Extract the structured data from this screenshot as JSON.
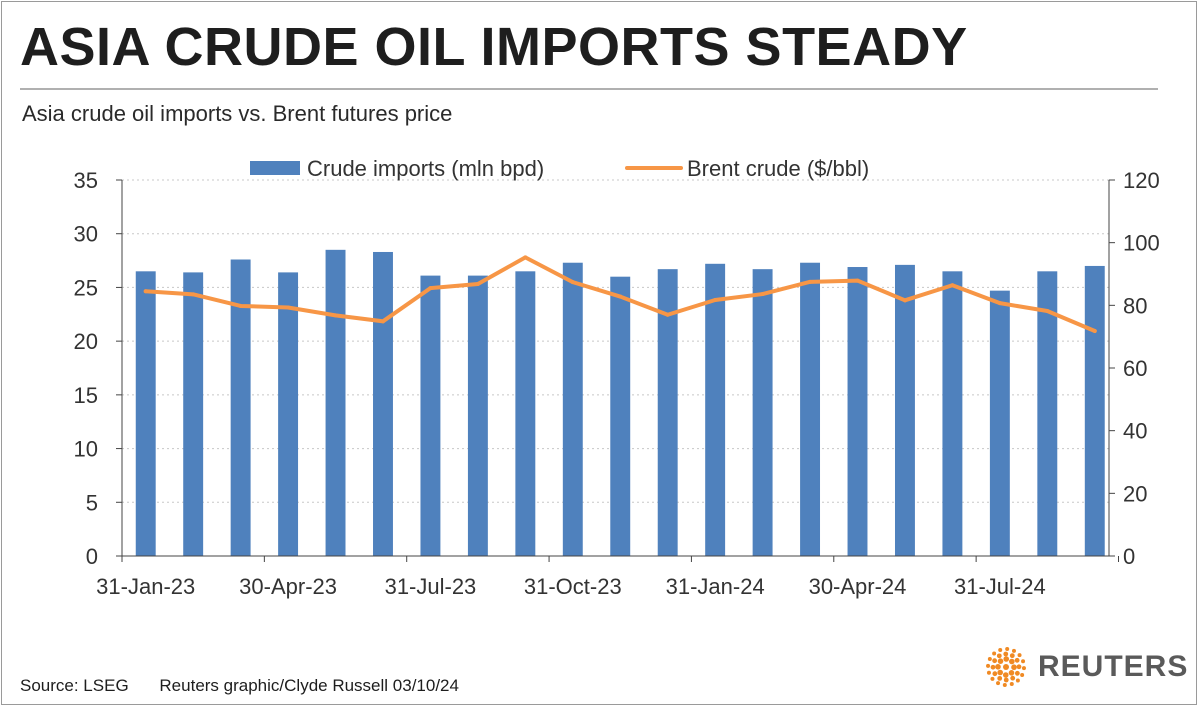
{
  "header": {
    "title": "ASIA CRUDE OIL IMPORTS STEADY",
    "subtitle": "Asia crude oil imports vs. Brent futures price"
  },
  "footer": {
    "source": "Source: LSEG",
    "credit": "Reuters graphic/Clyde Russell 03/10/24"
  },
  "brand": {
    "name": "REUTERS",
    "logo_icon": "reuters-dot-logo-icon",
    "logo_color": "#f08a24"
  },
  "colors": {
    "bar": "#4f81bd",
    "line": "#f79646",
    "grid": "#c8c8c8",
    "axis": "#444444"
  },
  "chart_data": {
    "type": "bar",
    "categories": [
      "31-Jan-23",
      "28-Feb-23",
      "31-Mar-23",
      "30-Apr-23",
      "31-May-23",
      "30-Jun-23",
      "31-Jul-23",
      "31-Aug-23",
      "30-Sep-23",
      "31-Oct-23",
      "30-Nov-23",
      "31-Dec-23",
      "31-Jan-24",
      "29-Feb-24",
      "31-Mar-24",
      "30-Apr-24",
      "31-May-24",
      "30-Jun-24",
      "31-Jul-24",
      "31-Aug-24",
      "30-Sep-24"
    ],
    "tick_labels": [
      "31-Jan-23",
      "30-Apr-23",
      "31-Jul-23",
      "31-Oct-23",
      "31-Jan-24",
      "30-Apr-24",
      "31-Jul-24"
    ],
    "series": [
      {
        "name": "Crude imports (mln bpd)",
        "type": "bar",
        "axis": "left",
        "values": [
          26.5,
          26.4,
          27.6,
          26.4,
          28.5,
          28.3,
          26.1,
          26.1,
          26.5,
          27.3,
          26.0,
          26.7,
          27.2,
          26.7,
          27.3,
          26.9,
          27.1,
          26.5,
          24.7,
          26.5,
          27.0
        ]
      },
      {
        "name": "Brent crude ($/bbl)",
        "type": "line",
        "axis": "right",
        "values": [
          84.5,
          83.5,
          79.8,
          79.3,
          76.8,
          74.9,
          85.5,
          86.8,
          95.3,
          87.4,
          82.8,
          77.0,
          81.7,
          83.6,
          87.5,
          87.9,
          81.6,
          86.4,
          80.7,
          78.2,
          71.8
        ]
      }
    ],
    "y_left": {
      "min": 0,
      "max": 35,
      "ticks": [
        0,
        5,
        10,
        15,
        20,
        25,
        30,
        35
      ]
    },
    "y_right": {
      "min": 0,
      "max": 120,
      "ticks": [
        0,
        20,
        40,
        60,
        80,
        100,
        120
      ]
    },
    "legend_position": "top-center",
    "grid": "horizontal-dotted"
  }
}
